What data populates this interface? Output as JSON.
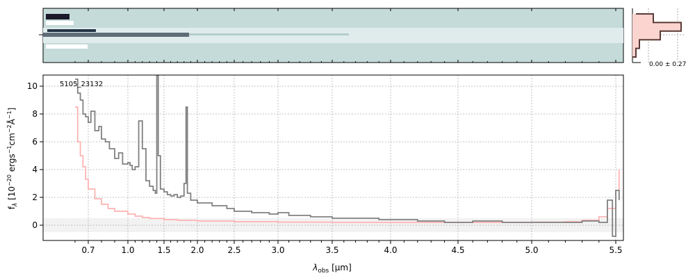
{
  "chart_data": {
    "type": "line",
    "title": "",
    "object_label": "5105_23132",
    "xlabel_main": "λ",
    "xlabel_sub": "obs",
    "xlabel_unit": " [μm]",
    "ylabel": "f_λ [10^−20 ergs^−1cm^−2Å^−1]",
    "ylabel_parts": {
      "f": "f",
      "lambda_sub": "λ",
      "open": " [10",
      "exp1": "−20",
      "mid1": " ergs",
      "exp2": "−1",
      "mid2": "cm",
      "exp3": "−2",
      "mid3": "Å",
      "exp4": "−1",
      "close": "]"
    },
    "x_scale": "nonlinear (wavelength axis, spacing follows spectral resolution)",
    "xlim": [
      0.55,
      5.52
    ],
    "ylim": [
      -1.1,
      10.8
    ],
    "xticks": [
      0.7,
      1.0,
      1.5,
      2.0,
      2.5,
      3.0,
      3.5,
      4.0,
      4.5,
      5.0,
      5.5
    ],
    "xtick_labels": [
      "0.7",
      "1.0",
      "1.5",
      "2.0",
      "2.5",
      "3.0",
      "3.5",
      "4.0",
      "4.5",
      "5.0",
      "5.5"
    ],
    "yticks": [
      0,
      2,
      4,
      6,
      8,
      10
    ],
    "ytick_labels": [
      "0",
      "2",
      "4",
      "6",
      "8",
      "10"
    ],
    "grid": true,
    "series": [
      {
        "style": "steps",
        "color": "#808080",
        "x": [
          0.6,
          0.62,
          0.64,
          0.66,
          0.68,
          0.7,
          0.72,
          0.75,
          0.78,
          0.8,
          0.83,
          0.86,
          0.9,
          0.93,
          0.96,
          1.0,
          1.03,
          1.06,
          1.1,
          1.15,
          1.2,
          1.25,
          1.3,
          1.35,
          1.38,
          1.4,
          1.42,
          1.45,
          1.5,
          1.55,
          1.6,
          1.65,
          1.7,
          1.75,
          1.8,
          1.83,
          1.85,
          1.9,
          2.0,
          2.2,
          2.4,
          2.5,
          2.7,
          2.9,
          3.0,
          3.1,
          3.3,
          3.5,
          3.7,
          3.9,
          4.0,
          4.2,
          4.4,
          4.6,
          4.8,
          5.0,
          5.2,
          5.3,
          5.4,
          5.45,
          5.48,
          5.5,
          5.52
        ],
        "y": [
          10.5,
          9.5,
          9.0,
          8.0,
          7.8,
          7.4,
          8.2,
          6.8,
          7.1,
          6.2,
          6.0,
          5.5,
          4.8,
          5.2,
          4.4,
          4.5,
          4.3,
          4.0,
          4.2,
          7.5,
          5.5,
          3.2,
          2.8,
          2.5,
          2.3,
          10.8,
          5.0,
          2.6,
          2.4,
          2.2,
          2.1,
          2.2,
          2.0,
          2.1,
          3.0,
          8.5,
          2.3,
          1.8,
          1.6,
          1.4,
          1.2,
          1.0,
          0.9,
          0.8,
          0.9,
          0.7,
          0.6,
          0.5,
          0.5,
          0.4,
          0.4,
          0.3,
          0.2,
          0.3,
          0.2,
          0.2,
          0.2,
          0.3,
          0.2,
          1.8,
          -0.8,
          2.5,
          1.8
        ]
      },
      {
        "style": "steps",
        "color": "#ffb3b3",
        "x": [
          0.6,
          0.62,
          0.64,
          0.66,
          0.68,
          0.7,
          0.75,
          0.8,
          0.85,
          0.9,
          1.0,
          1.1,
          1.2,
          1.3,
          1.5,
          1.7,
          2.0,
          2.5,
          3.0,
          3.5,
          4.0,
          4.5,
          5.0,
          5.2,
          5.3,
          5.4,
          5.45,
          5.5,
          5.52
        ],
        "y": [
          8.5,
          6.0,
          5.0,
          4.2,
          3.3,
          2.6,
          1.9,
          1.5,
          1.2,
          1.0,
          0.8,
          0.65,
          0.55,
          0.48,
          0.4,
          0.35,
          0.3,
          0.25,
          0.22,
          0.2,
          0.2,
          0.2,
          0.22,
          0.25,
          0.35,
          0.6,
          1.2,
          2.5,
          4.0
        ]
      }
    ],
    "histogram": {
      "label": "0.00 ± 0.27",
      "bins": [
        -1.5,
        -1.0,
        -0.5,
        0.0,
        0.5,
        1.0
      ],
      "counts": [
        1,
        2,
        8,
        14,
        6,
        1
      ]
    }
  }
}
